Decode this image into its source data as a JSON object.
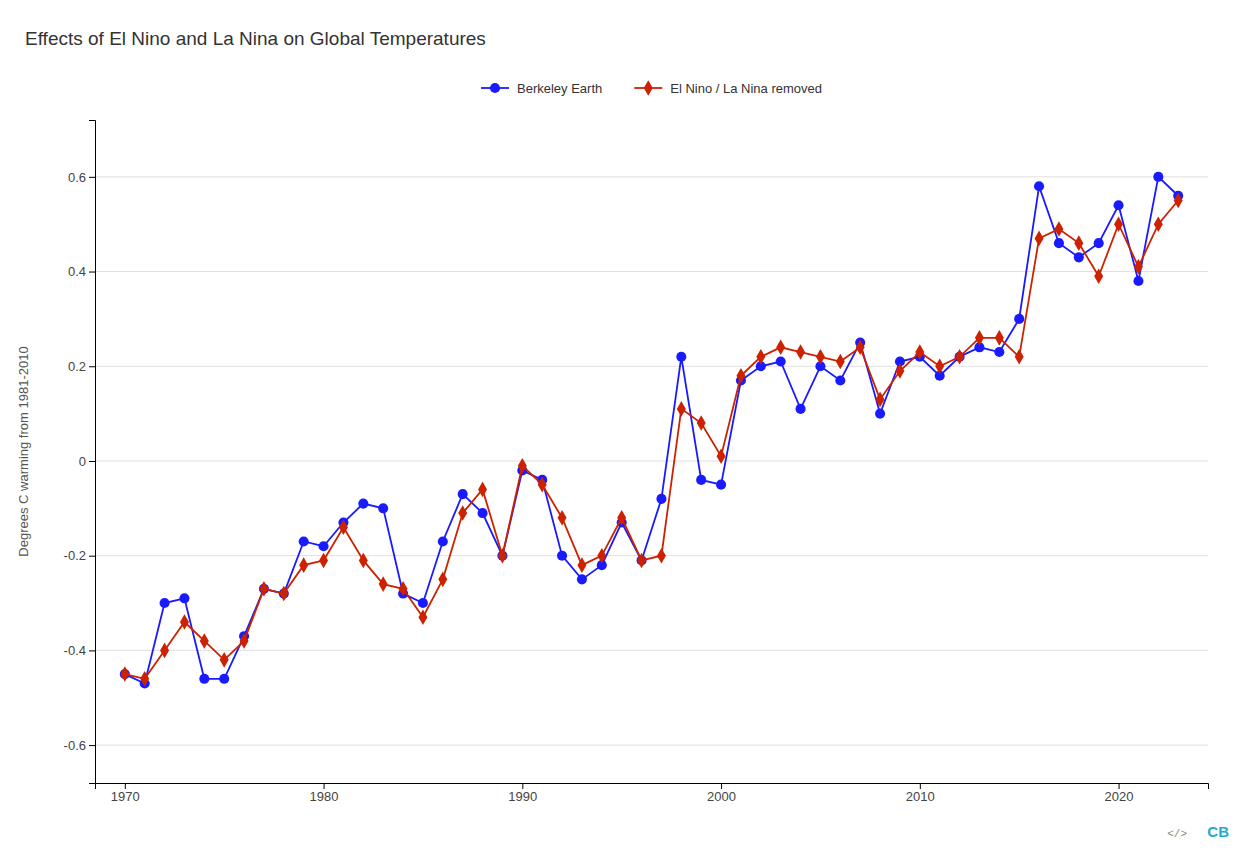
{
  "chart_data": {
    "type": "line",
    "title": "Effects of El Nino and La Nina on Global Temperatures",
    "ylabel": "Degrees C warming from 1981-2010",
    "x": [
      1970,
      1971,
      1972,
      1973,
      1974,
      1975,
      1976,
      1977,
      1978,
      1979,
      1980,
      1981,
      1982,
      1983,
      1984,
      1985,
      1986,
      1987,
      1988,
      1989,
      1990,
      1991,
      1992,
      1993,
      1994,
      1995,
      1996,
      1997,
      1998,
      1999,
      2000,
      2001,
      2002,
      2003,
      2004,
      2005,
      2006,
      2007,
      2008,
      2009,
      2010,
      2011,
      2012,
      2013,
      2014,
      2015,
      2016,
      2017,
      2018,
      2019,
      2020,
      2021,
      2022,
      2023
    ],
    "series": [
      {
        "name": "Berkeley Earth",
        "color": "#1a1aff",
        "marker": "circle",
        "line_style": "solid",
        "values": [
          -0.45,
          -0.47,
          -0.3,
          -0.29,
          -0.46,
          -0.46,
          -0.37,
          -0.27,
          -0.28,
          -0.17,
          -0.18,
          -0.13,
          -0.09,
          -0.1,
          -0.28,
          -0.3,
          -0.17,
          -0.07,
          -0.11,
          -0.2,
          -0.02,
          -0.04,
          -0.2,
          -0.25,
          -0.22,
          -0.13,
          -0.21,
          -0.08,
          0.22,
          -0.04,
          -0.05,
          0.17,
          0.2,
          0.21,
          0.11,
          0.2,
          0.17,
          0.25,
          0.1,
          0.21,
          0.22,
          0.18,
          0.22,
          0.24,
          0.23,
          0.3,
          0.58,
          0.46,
          0.43,
          0.46,
          0.54,
          0.38,
          0.6,
          0.56
        ]
      },
      {
        "name": "El Nino / La Nina removed",
        "color": "#cc2200",
        "marker": "diamond",
        "line_style": "solid",
        "values": [
          -0.45,
          -0.46,
          -0.4,
          -0.34,
          -0.38,
          -0.42,
          -0.38,
          -0.27,
          -0.28,
          -0.22,
          -0.21,
          -0.14,
          -0.21,
          -0.26,
          -0.27,
          -0.33,
          -0.25,
          -0.11,
          -0.06,
          -0.2,
          -0.01,
          -0.05,
          -0.12,
          -0.22,
          -0.2,
          -0.12,
          -0.21,
          -0.2,
          0.11,
          0.08,
          0.01,
          0.18,
          0.22,
          0.24,
          0.23,
          0.22,
          0.21,
          0.24,
          0.13,
          0.19,
          0.23,
          0.2,
          0.22,
          0.26,
          0.26,
          0.22,
          0.47,
          0.49,
          0.46,
          0.39,
          0.5,
          0.41,
          0.5,
          0.55
        ]
      }
    ],
    "xlim": [
      1968.5,
      2024.5
    ],
    "xticks": [
      1970,
      1980,
      1990,
      2000,
      2010,
      2020
    ],
    "ylim": [
      -0.68,
      0.72
    ],
    "yticks": [
      -0.6,
      -0.4,
      -0.2,
      0,
      0.2,
      0.4,
      0.6
    ],
    "grid": true,
    "legend": "top",
    "annotations": [
      "</>",
      "CB"
    ]
  }
}
